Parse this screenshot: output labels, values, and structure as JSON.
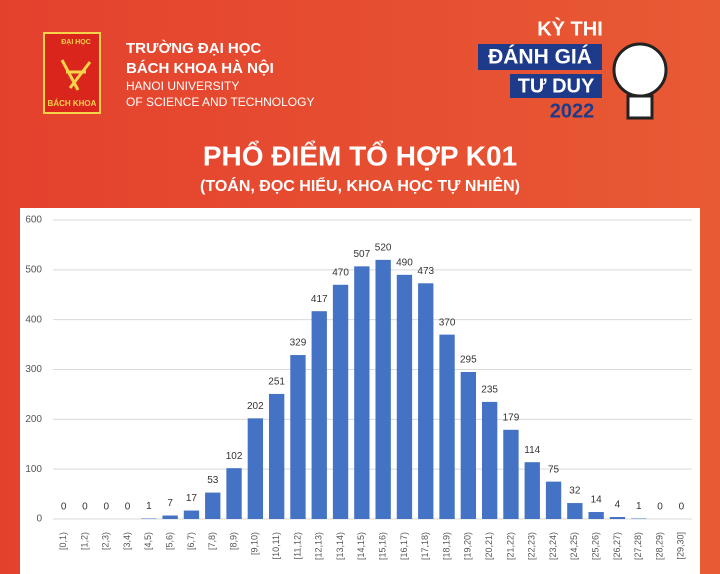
{
  "header": {
    "school_line1": "TRƯỜNG ĐẠI HỌC",
    "school_line2": "BÁCH KHOA HÀ NỘI",
    "school_en1": "HANOI UNIVERSITY",
    "school_en2": "OF SCIENCE AND TECHNOLOGY",
    "logo_top": "ĐẠI HỌC",
    "logo_bottom": "BÁCH KHOA",
    "badge_line1": "KỲ THI",
    "badge_line2": "ĐÁNH GIÁ",
    "badge_line3": "TƯ DUY",
    "badge_year": "2022"
  },
  "chart_data": {
    "type": "bar",
    "title": "PHỔ ĐIỂM TỔ HỢP K01",
    "subtitle": "(TOÁN, ĐỌC HIỂU, KHOA HỌC TỰ NHIÊN)",
    "categories": [
      "[0,1)",
      "[1,2)",
      "[2,3)",
      "[3,4)",
      "[4,5)",
      "[5,6)",
      "[6,7)",
      "[7,8)",
      "[8,9)",
      "[9,10)",
      "[10,11)",
      "[11,12)",
      "[12,13)",
      "[13,14)",
      "[14,15)",
      "[15,16)",
      "[16,17)",
      "[17,18)",
      "[18,19)",
      "[19,20)",
      "[20,21)",
      "[21,22)",
      "[22,23)",
      "[23,24)",
      "[24,25)",
      "[25,26)",
      "[26,27)",
      "[27,28)",
      "[28,29)",
      "[29,30]"
    ],
    "values": [
      0,
      0,
      0,
      0,
      1,
      7,
      17,
      53,
      102,
      202,
      251,
      329,
      417,
      470,
      507,
      520,
      490,
      473,
      370,
      295,
      235,
      179,
      114,
      75,
      32,
      14,
      4,
      1,
      0,
      0
    ],
    "color": "#4472c4",
    "ylim": [
      0,
      600
    ],
    "yticks": [
      0,
      100,
      200,
      300,
      400,
      500,
      600
    ],
    "grid": true
  }
}
